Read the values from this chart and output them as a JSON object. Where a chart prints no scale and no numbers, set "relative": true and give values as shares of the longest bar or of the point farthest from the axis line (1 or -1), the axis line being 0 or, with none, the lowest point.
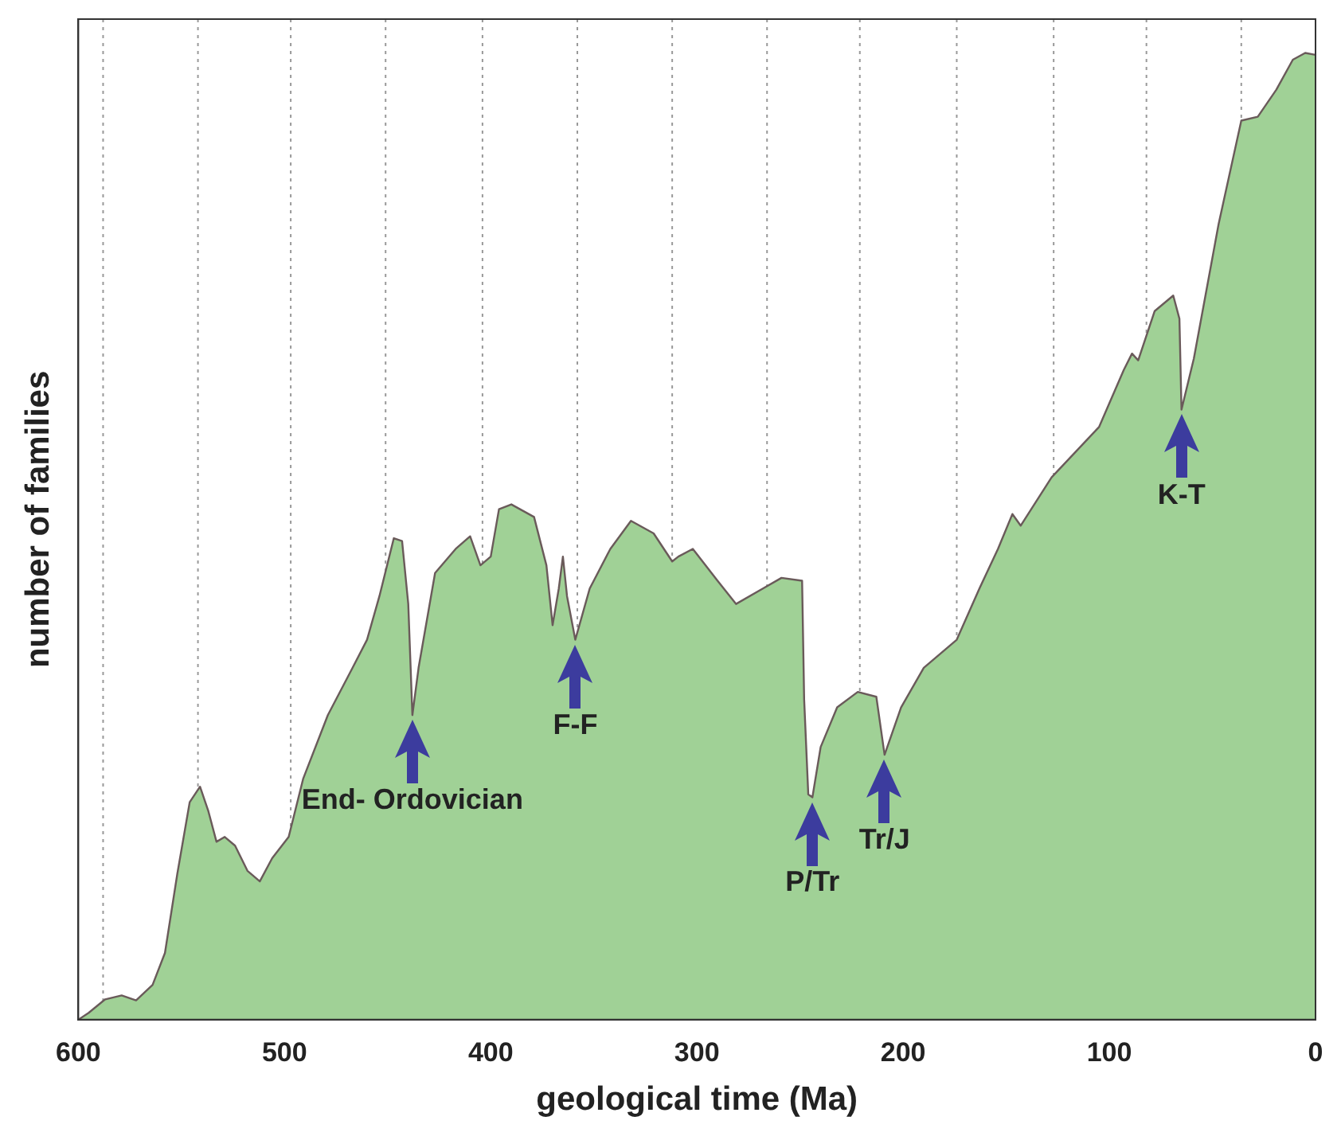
{
  "chart_data": {
    "type": "area",
    "xlabel": "geological time (Ma)",
    "ylabel": "number of families",
    "relative": true,
    "xlim": [
      600,
      0
    ],
    "xticks": [
      600,
      500,
      400,
      300,
      200,
      100,
      0
    ],
    "x": [
      600,
      595,
      587,
      579,
      572,
      564,
      558,
      552,
      546,
      541,
      537,
      533,
      529,
      524,
      518,
      512,
      506,
      498,
      491,
      479,
      467,
      460,
      454,
      447,
      443,
      440,
      438,
      435,
      427,
      417,
      410,
      405,
      400,
      396,
      390,
      379,
      373,
      370,
      367,
      365,
      363,
      359,
      352,
      342,
      332,
      321,
      312,
      309,
      302,
      290,
      281,
      268,
      259,
      249,
      248,
      246,
      244,
      240,
      232,
      222,
      213,
      209,
      201,
      190,
      174,
      163,
      154,
      147,
      143,
      128,
      105,
      93,
      89,
      86,
      78,
      69,
      66,
      65,
      59,
      47,
      36,
      28,
      19,
      11,
      5,
      0
    ],
    "series": [
      {
        "color": "#a0d196",
        "values": [
          0,
          0.007,
          0.021,
          0.025,
          0.02,
          0.036,
          0.069,
          0.151,
          0.225,
          0.241,
          0.216,
          0.184,
          0.189,
          0.18,
          0.154,
          0.143,
          0.167,
          0.189,
          0.249,
          0.315,
          0.364,
          0.393,
          0.438,
          0.498,
          0.495,
          0.43,
          0.315,
          0.364,
          0.462,
          0.487,
          0.5,
          0.47,
          0.479,
          0.528,
          0.533,
          0.52,
          0.47,
          0.408,
          0.446,
          0.479,
          0.438,
          0.393,
          0.446,
          0.487,
          0.516,
          0.503,
          0.474,
          0.479,
          0.487,
          0.454,
          0.43,
          0.446,
          0.457,
          0.454,
          0.331,
          0.233,
          0.23,
          0.282,
          0.323,
          0.339,
          0.334,
          0.274,
          0.323,
          0.364,
          0.393,
          0.446,
          0.487,
          0.523,
          0.511,
          0.561,
          0.613,
          0.672,
          0.689,
          0.682,
          0.733,
          0.749,
          0.725,
          0.631,
          0.684,
          0.823,
          0.93,
          0.934,
          0.962,
          0.993,
          1,
          0.998
        ]
      }
    ],
    "ref_lines": [
      {
        "axis": "x",
        "value": 588,
        "color": "#999999",
        "line_style": "dotted"
      },
      {
        "axis": "x",
        "value": 542,
        "color": "#999999",
        "line_style": "dotted"
      },
      {
        "axis": "x",
        "value": 497,
        "color": "#999999",
        "line_style": "dotted"
      },
      {
        "axis": "x",
        "value": 451,
        "color": "#999999",
        "line_style": "dotted"
      },
      {
        "axis": "x",
        "value": 404,
        "color": "#999999",
        "line_style": "dotted"
      },
      {
        "axis": "x",
        "value": 358,
        "color": "#999999",
        "line_style": "dotted"
      },
      {
        "axis": "x",
        "value": 312,
        "color": "#999999",
        "line_style": "dotted"
      },
      {
        "axis": "x",
        "value": 266,
        "color": "#999999",
        "line_style": "dotted"
      },
      {
        "axis": "x",
        "value": 221,
        "color": "#999999",
        "line_style": "dotted"
      },
      {
        "axis": "x",
        "value": 174,
        "color": "#999999",
        "line_style": "dotted"
      },
      {
        "axis": "x",
        "value": 127,
        "color": "#999999",
        "line_style": "dotted"
      },
      {
        "axis": "x",
        "value": 82,
        "color": "#999999",
        "line_style": "dotted"
      },
      {
        "axis": "x",
        "value": 36,
        "color": "#999999",
        "line_style": "dotted"
      }
    ],
    "annotations": [
      {
        "text": "End- Ordovician",
        "x": 438,
        "y": 0.315
      },
      {
        "text": "F-F",
        "x": 359,
        "y": 0.393
      },
      {
        "text": "P/Tr",
        "x": 244,
        "y": 0.23
      },
      {
        "text": "Tr/J",
        "x": 209,
        "y": 0.274
      },
      {
        "text": "K-T",
        "x": 65,
        "y": 0.631
      }
    ],
    "grid": false,
    "legend": false
  }
}
